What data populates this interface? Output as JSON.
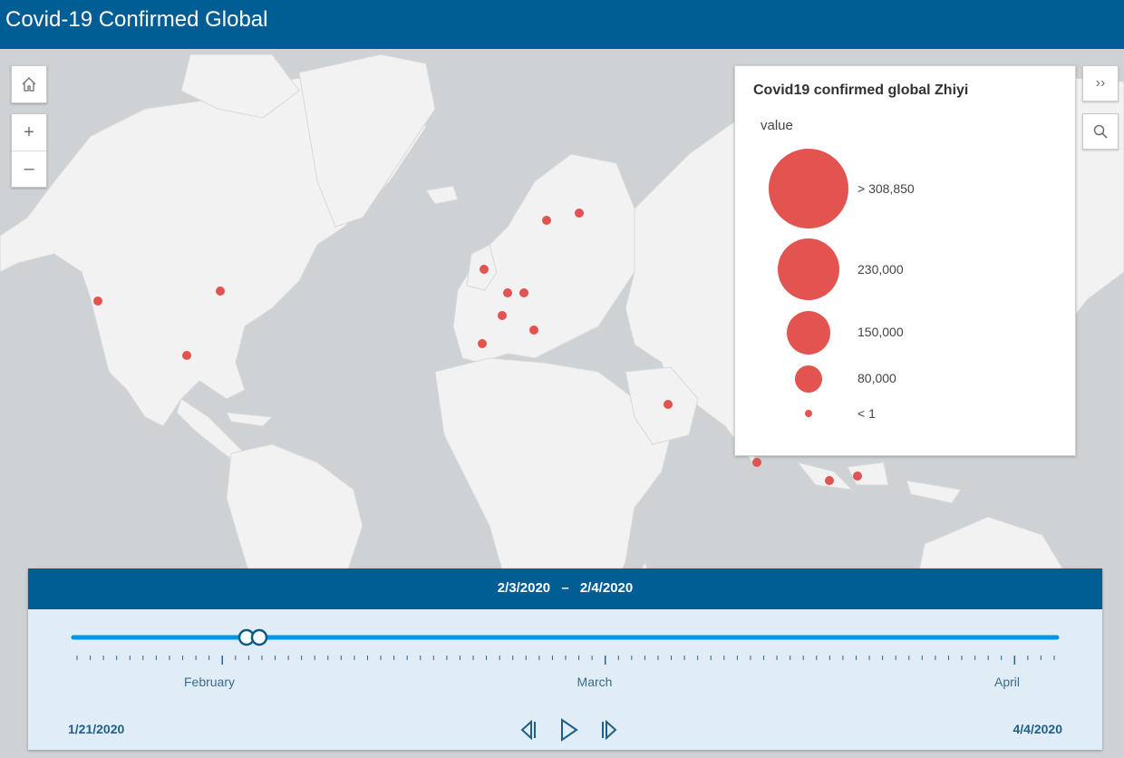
{
  "header": {
    "title": "Covid-19 Confirmed Global"
  },
  "map_controls": {
    "home_icon": "home-icon",
    "zoom_in": "+",
    "zoom_out": "–"
  },
  "legend": {
    "title": "Covid19 confirmed global Zhiyi",
    "field": "value",
    "items": [
      {
        "label": "> 308,850"
      },
      {
        "label": "230,000"
      },
      {
        "label": "150,000"
      },
      {
        "label": "80,000"
      },
      {
        "label": "< 1"
      }
    ],
    "symbol_color": "#e35350"
  },
  "right_controls": {
    "collapse_label": "››",
    "search_icon": "search-icon"
  },
  "time_slider": {
    "range_start": "2/3/2020",
    "range_sep": "–",
    "range_end": "2/4/2020",
    "min_label": "1/21/2020",
    "max_label": "4/4/2020",
    "months": [
      "February",
      "March",
      "April"
    ],
    "accent": "#0096e6"
  }
}
